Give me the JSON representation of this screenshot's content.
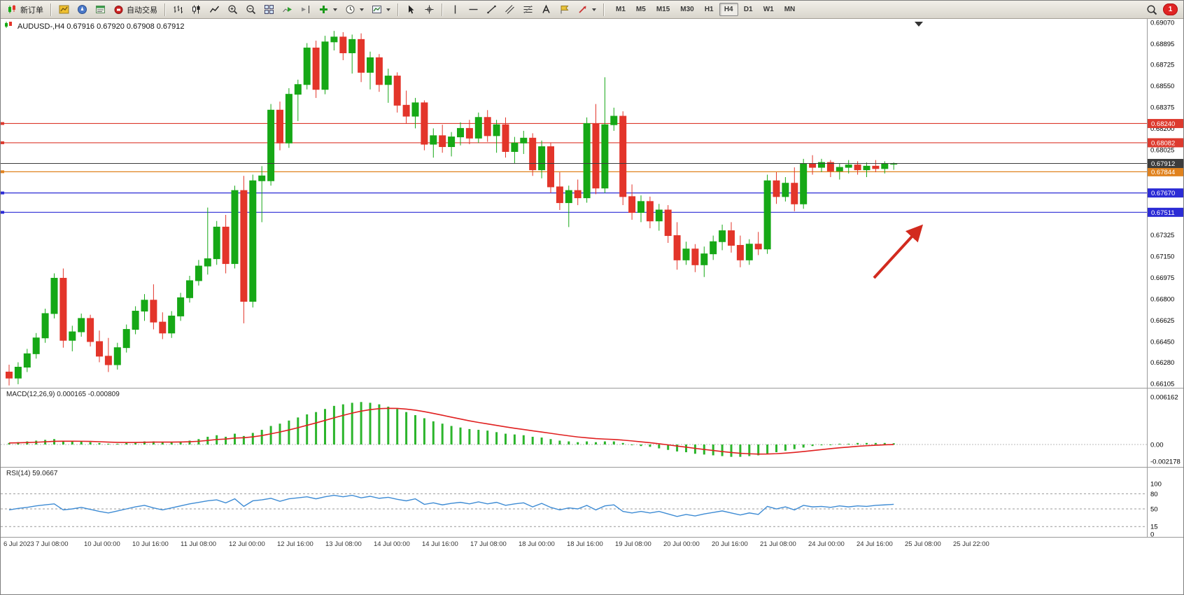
{
  "toolbar": {
    "new_order_label": "新订单",
    "autotrading_label": "自动交易",
    "timeframes": [
      "M1",
      "M5",
      "M15",
      "M30",
      "H1",
      "H4",
      "D1",
      "W1",
      "MN"
    ],
    "active_timeframe": "H4",
    "notification_count": "1"
  },
  "chart": {
    "info_line": {
      "symbol_period": "AUDUSD-,H4",
      "open": "0.67916",
      "high": "0.67920",
      "low": "0.67908",
      "close": "0.67912"
    },
    "ylim": [
      0.66105,
      0.6907
    ],
    "price_axis_ticks": [
      "0.69070",
      "0.68895",
      "0.68725",
      "0.68550",
      "0.68375",
      "0.68200",
      "0.68025",
      "0.67325",
      "0.67150",
      "0.66975",
      "0.66800",
      "0.66625",
      "0.66450",
      "0.66280",
      "0.66105"
    ],
    "levels": [
      {
        "price": 0.6824,
        "label": "0.68240",
        "color": "#dd3a2e",
        "kind": "resistance"
      },
      {
        "price": 0.68082,
        "label": "0.68082",
        "color": "#dd3a2e",
        "kind": "resistance"
      },
      {
        "price": 0.67844,
        "label": "0.67844",
        "color": "#e0821e",
        "kind": "pivot"
      },
      {
        "price": 0.6767,
        "label": "0.67670",
        "color": "#2b2bd5",
        "kind": "support"
      },
      {
        "price": 0.67511,
        "label": "0.67511",
        "color": "#2b2bd5",
        "kind": "support"
      }
    ],
    "current_price": {
      "price": 0.67912,
      "label": "0.67912",
      "color": "#3c3c3c"
    },
    "time_axis": [
      "6 Jul 2023",
      "7 Jul 08:00",
      "10 Jul 00:00",
      "10 Jul 16:00",
      "11 Jul 08:00",
      "12 Jul 00:00",
      "12 Jul 16:00",
      "13 Jul 08:00",
      "14 Jul 00:00",
      "14 Jul 16:00",
      "17 Jul 08:00",
      "18 Jul 00:00",
      "18 Jul 16:00",
      "19 Jul 08:00",
      "20 Jul 00:00",
      "20 Jul 16:00",
      "21 Jul 08:00",
      "24 Jul 00:00",
      "24 Jul 16:00",
      "25 Jul 08:00",
      "25 Jul 22:00"
    ]
  },
  "indicators": {
    "macd": {
      "label": "MACD(12,26,9) 0.000165 -0.000809",
      "axis_ticks": [
        "0.006162",
        "0.00",
        "-0.002178"
      ]
    },
    "rsi": {
      "label": "RSI(14) 59.0667",
      "axis_ticks": [
        100,
        80,
        50,
        15,
        0
      ],
      "levels": [
        80,
        50,
        15
      ]
    }
  },
  "annotations": {
    "trend_arrow": {
      "color": "#d22a1e",
      "direction": "up-right"
    }
  },
  "chart_data": {
    "type": "candlestick",
    "symbol": "AUDUSD-",
    "timeframe": "H4",
    "colors": {
      "up": "#16a816",
      "down": "#e3352a",
      "macd_hist": "#2cb52c",
      "macd_signal": "#e02020",
      "rsi_line": "#3d8bd4"
    },
    "candles": [
      [
        0.662,
        0.6626,
        0.6609,
        0.6615
      ],
      [
        0.6615,
        0.6628,
        0.661,
        0.6624
      ],
      [
        0.6624,
        0.6639,
        0.662,
        0.6635
      ],
      [
        0.6635,
        0.6652,
        0.6631,
        0.6648
      ],
      [
        0.6648,
        0.6672,
        0.6644,
        0.6668
      ],
      [
        0.6668,
        0.6701,
        0.6664,
        0.6697
      ],
      [
        0.6697,
        0.6705,
        0.664,
        0.6646
      ],
      [
        0.6646,
        0.6658,
        0.6637,
        0.6653
      ],
      [
        0.6653,
        0.6668,
        0.6649,
        0.6664
      ],
      [
        0.6664,
        0.6667,
        0.6641,
        0.6645
      ],
      [
        0.6645,
        0.6654,
        0.6628,
        0.6633
      ],
      [
        0.6633,
        0.6648,
        0.662,
        0.6626
      ],
      [
        0.6626,
        0.6644,
        0.6622,
        0.664
      ],
      [
        0.664,
        0.6659,
        0.6636,
        0.6655
      ],
      [
        0.6655,
        0.6674,
        0.6651,
        0.667
      ],
      [
        0.667,
        0.6684,
        0.6662,
        0.6679
      ],
      [
        0.6679,
        0.6692,
        0.6655,
        0.6661
      ],
      [
        0.6661,
        0.6669,
        0.6647,
        0.6652
      ],
      [
        0.6652,
        0.667,
        0.6648,
        0.6666
      ],
      [
        0.6666,
        0.6685,
        0.6662,
        0.6681
      ],
      [
        0.6681,
        0.6699,
        0.6677,
        0.6695
      ],
      [
        0.6695,
        0.6712,
        0.6691,
        0.6707
      ],
      [
        0.6707,
        0.6755,
        0.67,
        0.6713
      ],
      [
        0.6713,
        0.6744,
        0.6708,
        0.6739
      ],
      [
        0.6739,
        0.6749,
        0.6701,
        0.6709
      ],
      [
        0.6709,
        0.6773,
        0.6705,
        0.6769
      ],
      [
        0.6769,
        0.6781,
        0.666,
        0.6678
      ],
      [
        0.6678,
        0.6782,
        0.6673,
        0.6777
      ],
      [
        0.6777,
        0.6789,
        0.6743,
        0.6781
      ],
      [
        0.6777,
        0.684,
        0.6773,
        0.6835
      ],
      [
        0.6835,
        0.6842,
        0.6802,
        0.6808
      ],
      [
        0.6808,
        0.6853,
        0.6804,
        0.6848
      ],
      [
        0.6848,
        0.686,
        0.6826,
        0.6856
      ],
      [
        0.6856,
        0.689,
        0.6852,
        0.6886
      ],
      [
        0.6886,
        0.6892,
        0.6845,
        0.6852
      ],
      [
        0.6852,
        0.6896,
        0.6848,
        0.6891
      ],
      [
        0.6891,
        0.69,
        0.6884,
        0.6895
      ],
      [
        0.6895,
        0.6899,
        0.6876,
        0.6882
      ],
      [
        0.6882,
        0.6897,
        0.6865,
        0.6893
      ],
      [
        0.6893,
        0.6898,
        0.6858,
        0.6866
      ],
      [
        0.6866,
        0.6883,
        0.6852,
        0.6878
      ],
      [
        0.6878,
        0.6881,
        0.685,
        0.6856
      ],
      [
        0.6856,
        0.6869,
        0.6841,
        0.6863
      ],
      [
        0.6863,
        0.6866,
        0.6833,
        0.6839
      ],
      [
        0.6839,
        0.6851,
        0.6824,
        0.683
      ],
      [
        0.683,
        0.6845,
        0.682,
        0.6841
      ],
      [
        0.6841,
        0.6843,
        0.6802,
        0.6807
      ],
      [
        0.6807,
        0.682,
        0.6796,
        0.6814
      ],
      [
        0.6814,
        0.6823,
        0.68,
        0.6805
      ],
      [
        0.6805,
        0.6817,
        0.6797,
        0.6813
      ],
      [
        0.6813,
        0.6825,
        0.6806,
        0.682
      ],
      [
        0.682,
        0.6827,
        0.6807,
        0.6812
      ],
      [
        0.6812,
        0.6833,
        0.6808,
        0.6829
      ],
      [
        0.6829,
        0.6835,
        0.6809,
        0.6814
      ],
      [
        0.6814,
        0.6827,
        0.68,
        0.6823
      ],
      [
        0.6823,
        0.6829,
        0.6796,
        0.6801
      ],
      [
        0.6801,
        0.6813,
        0.6791,
        0.6808
      ],
      [
        0.6808,
        0.6818,
        0.6799,
        0.6812
      ],
      [
        0.6812,
        0.6816,
        0.6781,
        0.6786
      ],
      [
        0.6786,
        0.681,
        0.6779,
        0.6805
      ],
      [
        0.6805,
        0.6808,
        0.6767,
        0.6772
      ],
      [
        0.6772,
        0.6784,
        0.6753,
        0.6759
      ],
      [
        0.6759,
        0.6773,
        0.6739,
        0.6769
      ],
      [
        0.6769,
        0.6778,
        0.6757,
        0.6763
      ],
      [
        0.6763,
        0.6829,
        0.6759,
        0.6824
      ],
      [
        0.6824,
        0.684,
        0.6766,
        0.6771
      ],
      [
        0.6771,
        0.6862,
        0.6767,
        0.6823
      ],
      [
        0.6823,
        0.6837,
        0.6818,
        0.683
      ],
      [
        0.683,
        0.6834,
        0.6757,
        0.6764
      ],
      [
        0.6764,
        0.6774,
        0.6745,
        0.6751
      ],
      [
        0.6751,
        0.6765,
        0.6743,
        0.676
      ],
      [
        0.676,
        0.6764,
        0.6738,
        0.6744
      ],
      [
        0.6744,
        0.6758,
        0.6736,
        0.6753
      ],
      [
        0.6753,
        0.6757,
        0.6726,
        0.6732
      ],
      [
        0.6732,
        0.6743,
        0.6704,
        0.6712
      ],
      [
        0.6712,
        0.6727,
        0.6708,
        0.6721
      ],
      [
        0.6721,
        0.6725,
        0.6702,
        0.6708
      ],
      [
        0.6708,
        0.6723,
        0.6698,
        0.6717
      ],
      [
        0.6717,
        0.6732,
        0.6712,
        0.6727
      ],
      [
        0.6727,
        0.6741,
        0.672,
        0.6736
      ],
      [
        0.6736,
        0.6743,
        0.6718,
        0.6724
      ],
      [
        0.6724,
        0.6732,
        0.6706,
        0.6712
      ],
      [
        0.6712,
        0.6729,
        0.6708,
        0.6725
      ],
      [
        0.6725,
        0.6735,
        0.6716,
        0.6721
      ],
      [
        0.6721,
        0.6782,
        0.6717,
        0.6777
      ],
      [
        0.6777,
        0.6784,
        0.6758,
        0.6764
      ],
      [
        0.6764,
        0.678,
        0.676,
        0.6775
      ],
      [
        0.6775,
        0.6788,
        0.6752,
        0.6758
      ],
      [
        0.6758,
        0.6795,
        0.6754,
        0.6791
      ],
      [
        0.6791,
        0.6798,
        0.6782,
        0.6788
      ],
      [
        0.6788,
        0.6795,
        0.6784,
        0.6792
      ],
      [
        0.6792,
        0.6794,
        0.678,
        0.6785
      ],
      [
        0.6785,
        0.6791,
        0.6778,
        0.6788
      ],
      [
        0.6788,
        0.6794,
        0.6783,
        0.679
      ],
      [
        0.679,
        0.6793,
        0.6782,
        0.6786
      ],
      [
        0.6786,
        0.6792,
        0.678,
        0.6789
      ],
      [
        0.6789,
        0.6794,
        0.6784,
        0.6787
      ],
      [
        0.6787,
        0.6793,
        0.6783,
        0.6791
      ],
      [
        0.6791,
        0.6792,
        0.6786,
        0.67912
      ]
    ],
    "macd_hist": [
      0.0002,
      0.0003,
      0.0004,
      0.0005,
      0.0006,
      0.0007,
      0.0005,
      0.0004,
      0.0004,
      0.0003,
      0.0002,
      0.0001,
      0.0001,
      0.0002,
      0.0003,
      0.0004,
      0.0004,
      0.0003,
      0.0003,
      0.0004,
      0.0005,
      0.0007,
      0.001,
      0.0012,
      0.001,
      0.0014,
      0.0011,
      0.0015,
      0.0019,
      0.0024,
      0.0027,
      0.0031,
      0.0035,
      0.0039,
      0.0042,
      0.0046,
      0.005,
      0.0052,
      0.0054,
      0.0055,
      0.0054,
      0.0052,
      0.0049,
      0.0046,
      0.0042,
      0.0038,
      0.0034,
      0.003,
      0.0027,
      0.0024,
      0.0022,
      0.002,
      0.0019,
      0.0018,
      0.0016,
      0.0014,
      0.0013,
      0.0012,
      0.001,
      0.0009,
      0.0007,
      0.0005,
      0.0004,
      0.0003,
      0.0004,
      0.0003,
      0.0004,
      0.0004,
      0.0002,
      0.0,
      -0.0002,
      -0.0003,
      -0.0005,
      -0.0007,
      -0.0009,
      -0.001,
      -0.0012,
      -0.0013,
      -0.0014,
      -0.0015,
      -0.0016,
      -0.0016,
      -0.0015,
      -0.0014,
      -0.0012,
      -0.001,
      -0.0008,
      -0.0006,
      -0.0004,
      -0.0002,
      -0.0001,
      0.0,
      0.0001,
      0.0001,
      0.0002,
      0.0002,
      0.0002,
      0.0002,
      0.000165
    ],
    "rsi": [
      48,
      51,
      53,
      56,
      58,
      60,
      48,
      50,
      53,
      49,
      45,
      42,
      46,
      50,
      54,
      57,
      52,
      48,
      52,
      56,
      60,
      63,
      66,
      68,
      62,
      70,
      55,
      66,
      68,
      71,
      65,
      70,
      72,
      74,
      70,
      74,
      77,
      74,
      77,
      72,
      75,
      71,
      73,
      69,
      66,
      70,
      59,
      62,
      58,
      61,
      63,
      60,
      64,
      60,
      63,
      57,
      60,
      62,
      54,
      61,
      53,
      48,
      52,
      50,
      57,
      48,
      56,
      58,
      45,
      42,
      45,
      42,
      45,
      40,
      35,
      39,
      36,
      40,
      43,
      46,
      42,
      38,
      42,
      39,
      55,
      50,
      54,
      48,
      57,
      54,
      55,
      53,
      56,
      54,
      56,
      55,
      57,
      58,
      59.0667
    ]
  }
}
